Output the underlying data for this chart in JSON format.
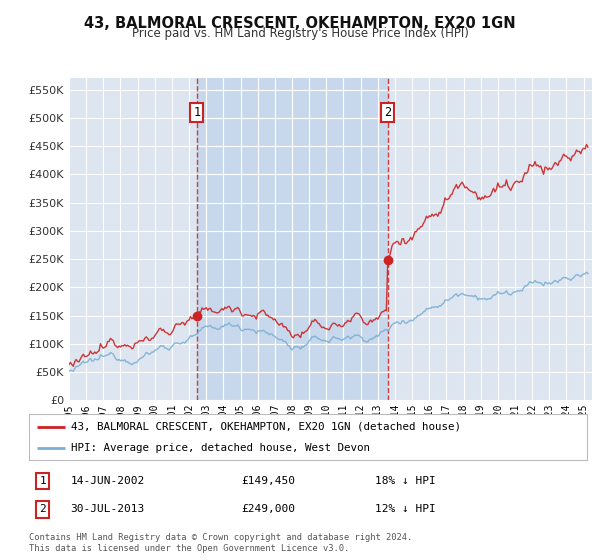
{
  "title": "43, BALMORAL CRESCENT, OKEHAMPTON, EX20 1GN",
  "subtitle": "Price paid vs. HM Land Registry's House Price Index (HPI)",
  "yticks": [
    0,
    50000,
    100000,
    150000,
    200000,
    250000,
    300000,
    350000,
    400000,
    450000,
    500000,
    550000
  ],
  "ylim": [
    0,
    570000
  ],
  "xlim_start": 1995.0,
  "xlim_end": 2025.5,
  "background_color": "#ffffff",
  "plot_bg_color": "#dde6f0",
  "shade_color": "#c8d8ec",
  "grid_color": "#ffffff",
  "hpi_color": "#7aafd4",
  "price_color": "#cc2222",
  "sale1_date": 2002.45,
  "sale1_price": 149450,
  "sale2_date": 2013.58,
  "sale2_price": 249000,
  "legend_house_label": "43, BALMORAL CRESCENT, OKEHAMPTON, EX20 1GN (detached house)",
  "legend_hpi_label": "HPI: Average price, detached house, West Devon",
  "footer_text": "Contains HM Land Registry data © Crown copyright and database right 2024.\nThis data is licensed under the Open Government Licence v3.0.",
  "annotation1_label": "14-JUN-2002",
  "annotation1_price": "£149,450",
  "annotation1_pct": "18% ↓ HPI",
  "annotation2_label": "30-JUL-2013",
  "annotation2_price": "£249,000",
  "annotation2_pct": "12% ↓ HPI"
}
